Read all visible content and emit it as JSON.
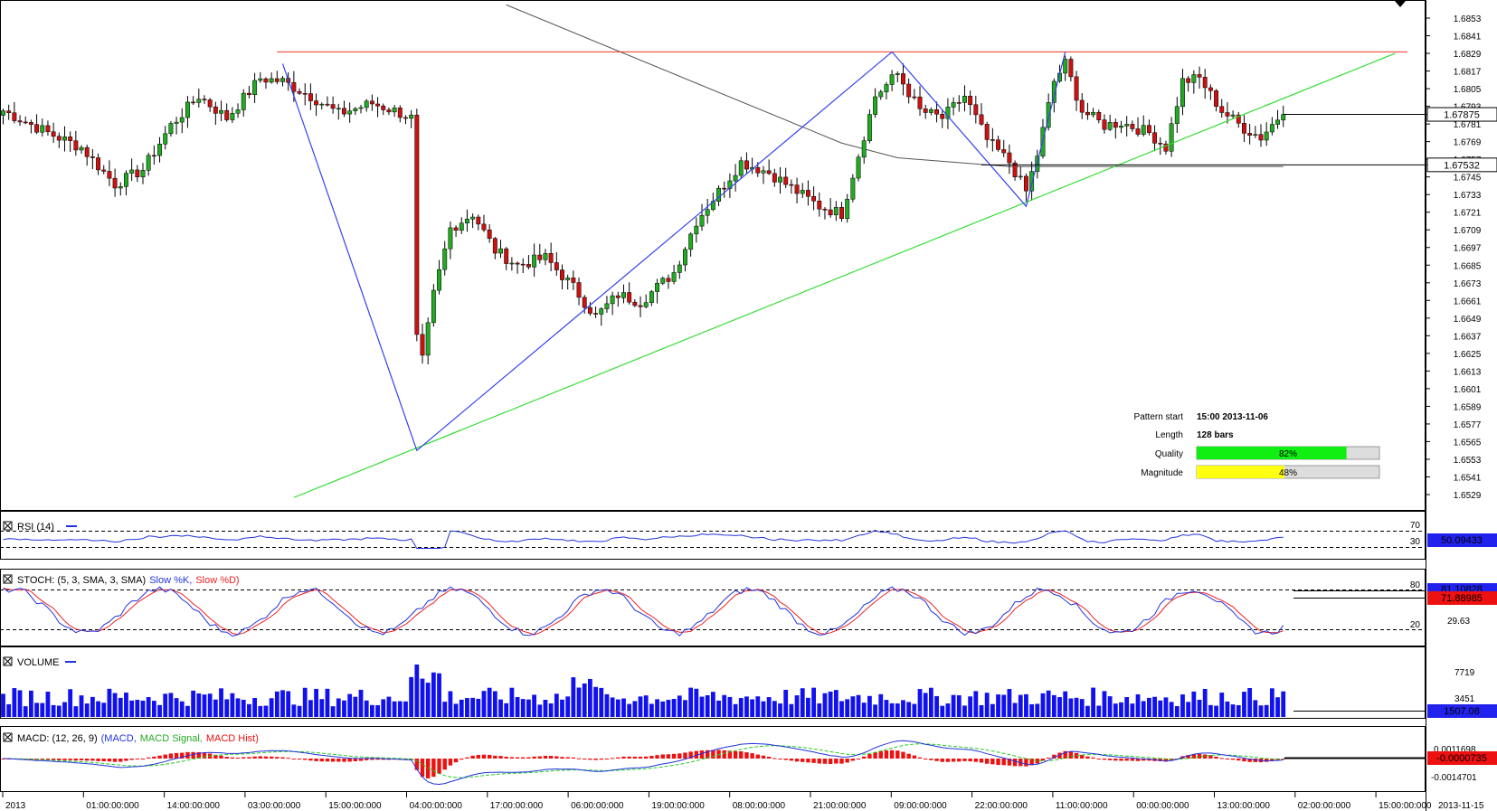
{
  "chart_data": {
    "type": "candlestick",
    "price_axis": {
      "ticks": [
        "1.6853",
        "1.6841",
        "1.6829",
        "1.6817",
        "1.6805",
        "1.6793",
        "1.6781",
        "1.6769",
        "1.6757",
        "1.6745",
        "1.6733",
        "1.6721",
        "1.6709",
        "1.6697",
        "1.6685",
        "1.6673",
        "1.6661",
        "1.6649",
        "1.6637",
        "1.6625",
        "1.6613",
        "1.6601",
        "1.6589",
        "1.6577",
        "1.6565",
        "1.6553",
        "1.6541",
        "1.6529"
      ],
      "min": 1.6524,
      "max": 1.6862,
      "current_price": "1.67875",
      "ma_price": "1.67532"
    },
    "time_axis": {
      "labels": [
        "2013",
        "01:00:00:000",
        "14:00:00:000",
        "03:00:00:000",
        "15:00:00:000",
        "04:00:00:000",
        "17:00:00:000",
        "06:00:00:000",
        "19:00:00:000",
        "08:00:00:000",
        "21:00:00:000",
        "09:00:00:000",
        "22:00:00:000",
        "11:00:00:000",
        "00:00:00:000",
        "13:00:00:000",
        "02:00:00:000",
        "15:00:00:000"
      ],
      "end_label": "2013-11-15"
    },
    "anchors": [
      [
        0,
        1.679
      ],
      [
        8,
        1.6775
      ],
      [
        14,
        1.6765
      ],
      [
        20,
        1.674
      ],
      [
        25,
        1.675
      ],
      [
        30,
        1.678
      ],
      [
        35,
        1.68
      ],
      [
        40,
        1.6785
      ],
      [
        46,
        1.6812
      ],
      [
        50,
        1.681
      ],
      [
        55,
        1.68
      ],
      [
        60,
        1.6788
      ],
      [
        66,
        1.6795
      ],
      [
        70,
        1.679
      ],
      [
        73,
        1.6785
      ],
      [
        74,
        1.6635
      ],
      [
        75,
        1.662
      ],
      [
        77,
        1.6665
      ],
      [
        80,
        1.671
      ],
      [
        84,
        1.672
      ],
      [
        88,
        1.6695
      ],
      [
        92,
        1.6685
      ],
      [
        97,
        1.669
      ],
      [
        102,
        1.667
      ],
      [
        106,
        1.665
      ],
      [
        110,
        1.6665
      ],
      [
        114,
        1.666
      ],
      [
        120,
        1.668
      ],
      [
        124,
        1.6715
      ],
      [
        128,
        1.6735
      ],
      [
        132,
        1.6755
      ],
      [
        137,
        1.6748
      ],
      [
        142,
        1.6735
      ],
      [
        146,
        1.6725
      ],
      [
        150,
        1.672
      ],
      [
        153,
        1.676
      ],
      [
        156,
        1.68
      ],
      [
        160,
        1.6815
      ],
      [
        164,
        1.679
      ],
      [
        168,
        1.6785
      ],
      [
        172,
        1.68
      ],
      [
        176,
        1.677
      ],
      [
        180,
        1.6755
      ],
      [
        183,
        1.6735
      ],
      [
        185,
        1.676
      ],
      [
        188,
        1.681
      ],
      [
        190,
        1.6822
      ],
      [
        193,
        1.679
      ],
      [
        197,
        1.678
      ],
      [
        200,
        1.6782
      ],
      [
        205,
        1.6775
      ],
      [
        208,
        1.6765
      ],
      [
        211,
        1.681
      ],
      [
        214,
        1.6812
      ],
      [
        218,
        1.679
      ],
      [
        222,
        1.6778
      ],
      [
        225,
        1.6772
      ],
      [
        228,
        1.6785
      ],
      [
        229,
        1.67875
      ]
    ],
    "pattern_lines": {
      "resistance": 1.683,
      "zigzag": [
        [
          50,
          1.6822
        ],
        [
          74,
          1.6559
        ],
        [
          159,
          1.683
        ],
        [
          183,
          1.6725
        ],
        [
          190,
          1.683
        ]
      ],
      "support_line": [
        [
          52,
          1.6527
        ],
        [
          249,
          1.6829
        ]
      ],
      "moving_average": [
        [
          90,
          1.6862
        ],
        [
          150,
          1.6768
        ],
        [
          160,
          1.6758
        ],
        [
          180,
          1.6752
        ],
        [
          229,
          1.6752
        ]
      ]
    },
    "pattern_info": {
      "pattern_start_label": "Pattern start",
      "pattern_start": "15:00 2013-11-06",
      "length_label": "Length",
      "length": "128 bars",
      "quality_label": "Quality",
      "quality": 82,
      "quality_text": "82%",
      "magnitude_label": "Magnitude",
      "magnitude": 48,
      "magnitude_text": "48%"
    },
    "rsi": {
      "title": "RSI (14)",
      "levels": [
        "70",
        "30"
      ],
      "value": "50.09433"
    },
    "stoch": {
      "title": "STOCH: (5, 3, SMA, 3, SMA)",
      "k_label": "Slow %K,",
      "d_label": "Slow %D)",
      "levels": [
        "80",
        "20"
      ],
      "tick": "29.63",
      "k_value": "81.10828",
      "d_value": "71.88985"
    },
    "volume": {
      "title": "VOLUME",
      "ticks": [
        "7719",
        "3451"
      ],
      "value": "1507.08"
    },
    "macd": {
      "title": "MACD: (12, 26, 9)",
      "macd_label": "(MACD,",
      "signal_label": "MACD Signal,",
      "hist_label": "MACD Hist)",
      "ticks": [
        "0.0011698",
        "-0.0014701"
      ],
      "value": "-0.0000735"
    },
    "colors": {
      "bull": "#22aa22",
      "bear": "#cc1111",
      "zigzag": "#3344ee",
      "support": "#33dd33",
      "resistance": "#ee3322",
      "ma": "#555555",
      "rsi": "#2233dd",
      "stoch_k": "#2233dd",
      "stoch_d": "#ee2222",
      "volume": "#1111ee",
      "macd": "#2233dd",
      "signal": "#22cc22",
      "hist": "#ee1111",
      "quality": "#11ee11",
      "magnitude": "#ffff11"
    }
  }
}
